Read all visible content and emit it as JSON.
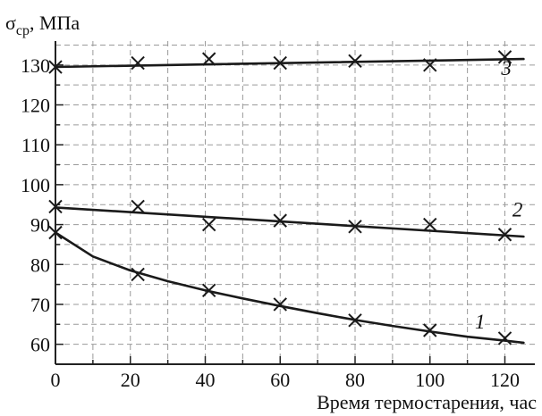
{
  "chart_data": {
    "type": "line",
    "ylabel_main": "σ",
    "ylabel_sub": "ср",
    "ylabel_unit": ", МПа",
    "xlabel": "Время термостарения, час",
    "xlim": [
      0,
      128
    ],
    "ylim": [
      55,
      136
    ],
    "x_ticks": [
      0,
      20,
      40,
      60,
      80,
      100,
      120
    ],
    "y_ticks": [
      60,
      70,
      80,
      90,
      100,
      110,
      120,
      130
    ],
    "grid": true,
    "series": [
      {
        "label": "1",
        "x": [
          0,
          22,
          41,
          60,
          80,
          100,
          120
        ],
        "y": [
          88,
          77.5,
          73.5,
          70,
          66,
          63.5,
          61.5
        ],
        "fit": [
          [
            0,
            88
          ],
          [
            10,
            82
          ],
          [
            20,
            78.5
          ],
          [
            30,
            75.8
          ],
          [
            40,
            73.5
          ],
          [
            50,
            71.5
          ],
          [
            60,
            69.6
          ],
          [
            70,
            67.8
          ],
          [
            80,
            66.1
          ],
          [
            90,
            64.6
          ],
          [
            100,
            63.2
          ],
          [
            110,
            61.9
          ],
          [
            120,
            60.9
          ],
          [
            125,
            60.4
          ]
        ]
      },
      {
        "label": "2",
        "x": [
          0,
          22,
          41,
          60,
          80,
          100,
          120
        ],
        "y": [
          94.5,
          94.5,
          90,
          91,
          89.5,
          90,
          87.5
        ],
        "fit": [
          [
            0,
            94.3
          ],
          [
            125,
            87
          ]
        ]
      },
      {
        "label": "3",
        "x": [
          0,
          22,
          41,
          60,
          80,
          100,
          120
        ],
        "y": [
          129.5,
          130.5,
          131.5,
          130.5,
          131,
          130,
          132
        ],
        "fit": [
          [
            0,
            129.5
          ],
          [
            125,
            131.5
          ]
        ]
      }
    ]
  }
}
